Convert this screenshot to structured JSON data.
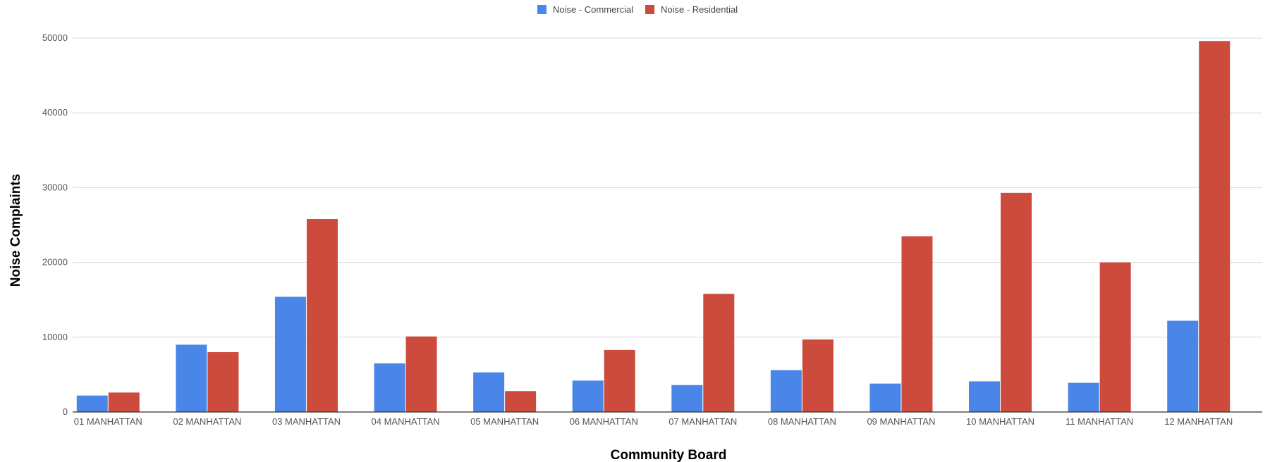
{
  "chart_data": {
    "type": "bar",
    "title": "",
    "xlabel": "Community Board",
    "ylabel": "Noise Complaints",
    "ylim": [
      0,
      50000
    ],
    "yticks": [
      0,
      10000,
      20000,
      30000,
      40000,
      50000
    ],
    "grid": true,
    "legend_position": "top-center",
    "categories": [
      "01 MANHATTAN",
      "02 MANHATTAN",
      "03 MANHATTAN",
      "04 MANHATTAN",
      "05 MANHATTAN",
      "06 MANHATTAN",
      "07 MANHATTAN",
      "08 MANHATTAN",
      "09 MANHATTAN",
      "10 MANHATTAN",
      "11 MANHATTAN",
      "12 MANHATTAN"
    ],
    "series": [
      {
        "name": "Noise - Commercial",
        "color": "#4a86e8",
        "values": [
          2200,
          9000,
          15400,
          6500,
          5300,
          4200,
          3600,
          5600,
          3800,
          4100,
          3900,
          12200
        ]
      },
      {
        "name": "Noise - Residential",
        "color": "#cc4b3c",
        "values": [
          2600,
          8000,
          25800,
          10100,
          2800,
          8300,
          15800,
          9700,
          23500,
          29300,
          20000,
          49600
        ]
      }
    ]
  }
}
